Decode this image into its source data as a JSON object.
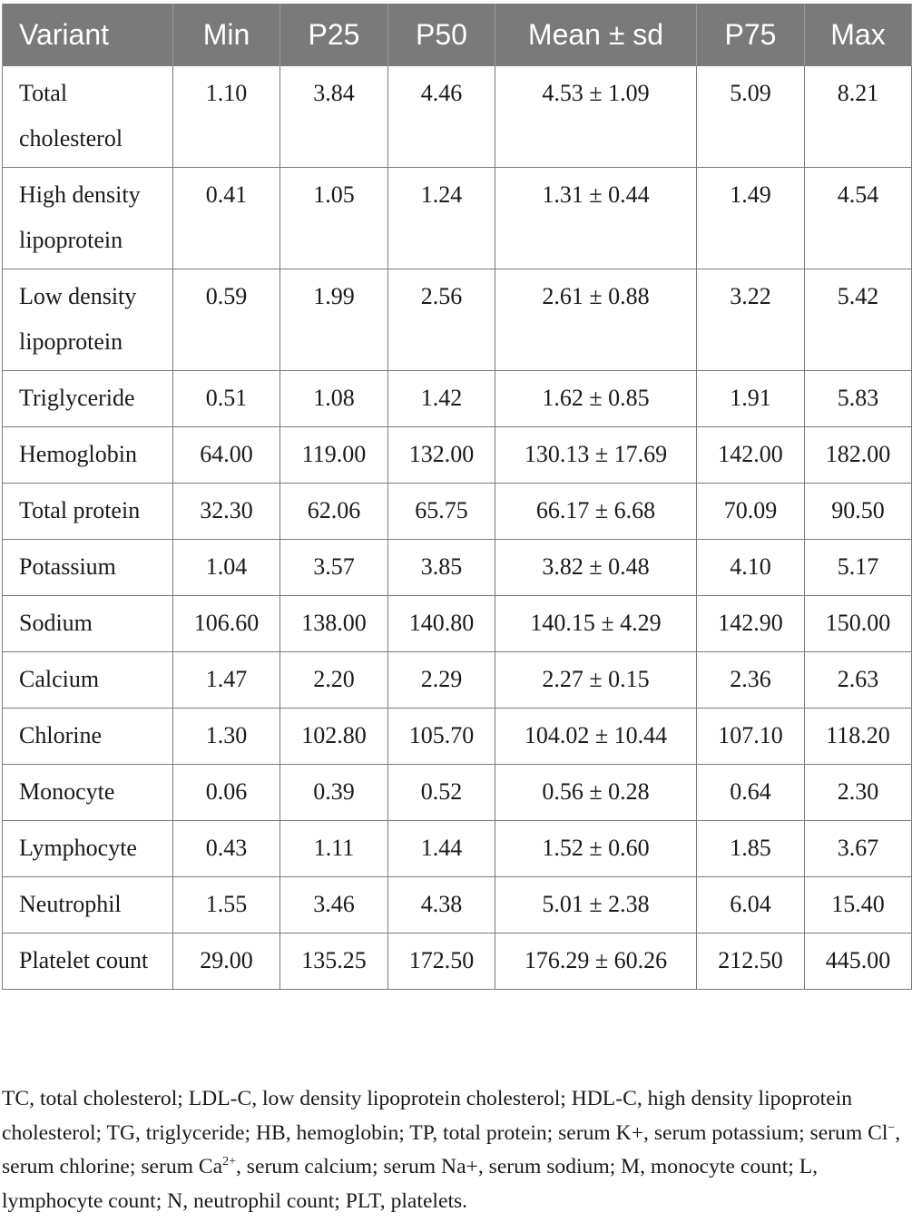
{
  "table": {
    "headers": [
      "Variant",
      "Min",
      "P25",
      "P50",
      "Mean ± sd",
      "P75",
      "Max"
    ],
    "rows": [
      [
        "Total cholesterol",
        "1.10",
        "3.84",
        "4.46",
        "4.53 ± 1.09",
        "5.09",
        "8.21"
      ],
      [
        "High density lipoprotein",
        "0.41",
        "1.05",
        "1.24",
        "1.31 ± 0.44",
        "1.49",
        "4.54"
      ],
      [
        "Low density lipoprotein",
        "0.59",
        "1.99",
        "2.56",
        "2.61 ± 0.88",
        "3.22",
        "5.42"
      ],
      [
        "Triglyceride",
        "0.51",
        "1.08",
        "1.42",
        "1.62 ± 0.85",
        "1.91",
        "5.83"
      ],
      [
        "Hemoglobin",
        "64.00",
        "119.00",
        "132.00",
        "130.13 ± 17.69",
        "142.00",
        "182.00"
      ],
      [
        "Total protein",
        "32.30",
        "62.06",
        "65.75",
        "66.17 ± 6.68",
        "70.09",
        "90.50"
      ],
      [
        "Potassium",
        "1.04",
        "3.57",
        "3.85",
        "3.82 ± 0.48",
        "4.10",
        "5.17"
      ],
      [
        "Sodium",
        "106.60",
        "138.00",
        "140.80",
        "140.15 ± 4.29",
        "142.90",
        "150.00"
      ],
      [
        "Calcium",
        "1.47",
        "2.20",
        "2.29",
        "2.27 ± 0.15",
        "2.36",
        "2.63"
      ],
      [
        "Chlorine",
        "1.30",
        "102.80",
        "105.70",
        "104.02 ± 10.44",
        "107.10",
        "118.20"
      ],
      [
        "Monocyte",
        "0.06",
        "0.39",
        "0.52",
        "0.56 ± 0.28",
        "0.64",
        "2.30"
      ],
      [
        "Lymphocyte",
        "0.43",
        "1.11",
        "1.44",
        "1.52 ± 0.60",
        "1.85",
        "3.67"
      ],
      [
        "Neutrophil",
        "1.55",
        "3.46",
        "4.38",
        "5.01 ± 2.38",
        "6.04",
        "15.40"
      ],
      [
        "Platelet count",
        "29.00",
        "135.25",
        "172.50",
        "176.29 ± 60.26",
        "212.50",
        "445.00"
      ]
    ]
  },
  "footnote": {
    "part1": "TC, total cholesterol; LDL-C, low density lipoprotein cholesterol; HDL-C, high density lipoprotein cholesterol; TG, triglyceride; HB, hemoglobin; TP, total protein; serum K+, serum potassium; serum Cl",
    "sup1": "−",
    "part2": ", serum chlorine; serum Ca",
    "sup2": "2+",
    "part3": ", serum calcium; serum Na+, serum sodium; M, monocyte count; L, lymphocyte count; N, neutrophil count; PLT, platelets."
  },
  "colors": {
    "header_background": "#7a7a7a",
    "header_text": "#ffffff",
    "grid_lines": "#7a7a7a",
    "body_text": "#1a1a1a"
  }
}
